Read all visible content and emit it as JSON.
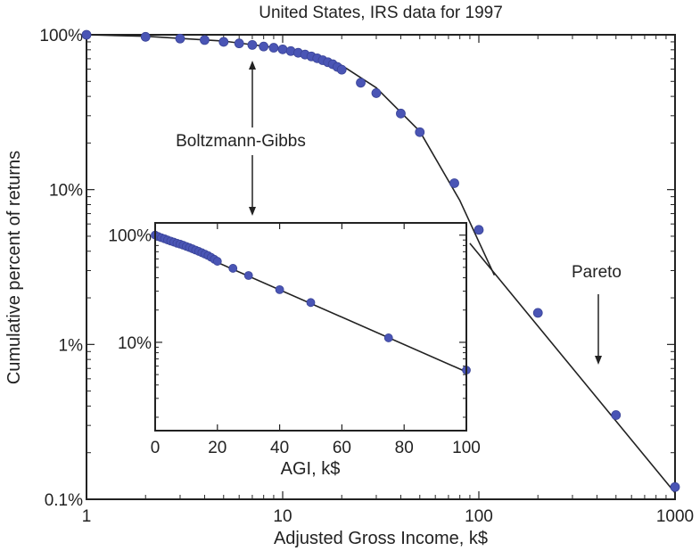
{
  "chart_data": [
    {
      "type": "scatter",
      "title": "United States, IRS data for 1997",
      "xlabel": "Adjusted Gross Income, k$",
      "ylabel": "Cumulative percent of returns",
      "xscale": "log",
      "yscale": "log",
      "xlim": [
        1,
        1000
      ],
      "ylim": [
        0.1,
        100
      ],
      "xticks": [
        "1",
        "10",
        "100",
        "1000"
      ],
      "yticks": [
        "0.1%",
        "1%",
        "10%",
        "100%"
      ],
      "grid": false,
      "annotations": [
        "Boltzmann-Gibbs",
        "Pareto"
      ],
      "series": [
        {
          "x": [
            1,
            2,
            3,
            4,
            5,
            6,
            7,
            8,
            9,
            10,
            11,
            12,
            13,
            14,
            15,
            16,
            17,
            18,
            19,
            20,
            25,
            30,
            40,
            50,
            75,
            100,
            200,
            500,
            1000
          ],
          "values": [
            100,
            97,
            94.5,
            92.5,
            90,
            88,
            86,
            84,
            82.5,
            80.5,
            78.5,
            76.5,
            74.5,
            72.5,
            70.5,
            68.5,
            66.5,
            64.5,
            62,
            59.5,
            49,
            42,
            31,
            23.5,
            11,
            5.5,
            1.6,
            0.35,
            0.12
          ]
        }
      ],
      "fit_lines": [
        {
          "x": [
            1,
            2,
            5,
            10,
            20,
            30,
            50,
            80,
            100,
            120
          ],
          "values": [
            100,
            97.8,
            91,
            81.5,
            63.5,
            45.5,
            23.8,
            8.5,
            4.6,
            2.8
          ]
        },
        {
          "x": [
            90,
            1000
          ],
          "values": [
            4.5,
            0.11
          ]
        }
      ]
    },
    {
      "type": "scatter",
      "xlabel": "AGI, k$",
      "yscale": "log",
      "xlim": [
        0,
        100
      ],
      "ylim": [
        1.5,
        130
      ],
      "xticks": [
        "0",
        "20",
        "40",
        "60",
        "80",
        "100"
      ],
      "yticks": [
        "10%",
        "100%"
      ],
      "grid": false,
      "series": [
        {
          "x": [
            0,
            1,
            2,
            3,
            4,
            5,
            6,
            7,
            8,
            9,
            10,
            11,
            12,
            13,
            14,
            15,
            16,
            17,
            18,
            19,
            20,
            25,
            30,
            40,
            50,
            75,
            100
          ],
          "values": [
            100,
            97,
            94.5,
            92.5,
            90,
            88,
            86,
            84,
            82.5,
            80.5,
            78.5,
            76.5,
            74.5,
            72.5,
            70.5,
            68.5,
            66.5,
            64.5,
            62,
            59.5,
            57,
            49,
            42,
            31,
            23.5,
            11,
            5.5
          ]
        }
      ],
      "fit_lines": [
        {
          "x": [
            0,
            100
          ],
          "values": [
            100,
            5.3
          ]
        }
      ]
    }
  ]
}
